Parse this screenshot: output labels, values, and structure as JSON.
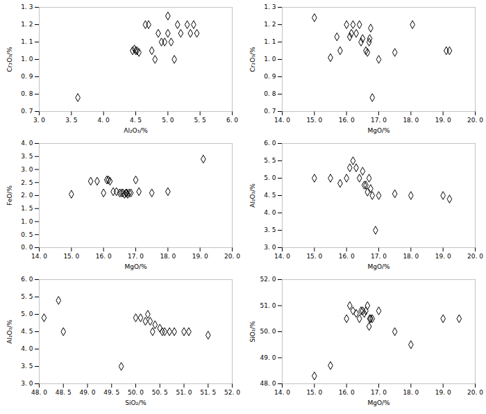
{
  "chart_data": [
    {
      "type": "scatter",
      "xlabel": "Al₂O₃/%",
      "ylabel": "Cr₂O₃/%",
      "color": "black",
      "marker": "diamond",
      "grid": false,
      "xlim": [
        3.0,
        6.0
      ],
      "ylim": [
        0.7,
        1.3
      ],
      "xticks": [
        {
          "value": 3.0,
          "label": "3. 0"
        },
        {
          "value": 3.5,
          "label": "3. 5"
        },
        {
          "value": 4.0,
          "label": "4. 0"
        },
        {
          "value": 4.5,
          "label": "4. 5"
        },
        {
          "value": 5.0,
          "label": "5. 0"
        },
        {
          "value": 5.5,
          "label": "5. 5"
        },
        {
          "value": 6.0,
          "label": "6. 0"
        }
      ],
      "yticks": [
        {
          "value": 0.7,
          "label": "0. 7"
        },
        {
          "value": 0.8,
          "label": "0. 8"
        },
        {
          "value": 0.9,
          "label": "0. 9"
        },
        {
          "value": 1.0,
          "label": "1. 0"
        },
        {
          "value": 1.1,
          "label": "1. 1"
        },
        {
          "value": 1.2,
          "label": "1. 2"
        },
        {
          "value": 1.3,
          "label": "1. 3"
        }
      ],
      "x": [
        3.6,
        4.45,
        4.48,
        4.5,
        4.52,
        4.55,
        4.65,
        4.7,
        4.75,
        4.8,
        4.85,
        4.9,
        4.95,
        5.0,
        5.0,
        5.05,
        5.1,
        5.15,
        5.2,
        5.3,
        5.35,
        5.4,
        5.45
      ],
      "y": [
        0.78,
        1.05,
        1.06,
        1.05,
        1.05,
        1.04,
        1.2,
        1.2,
        1.05,
        1.0,
        1.15,
        1.1,
        1.1,
        1.25,
        1.15,
        1.1,
        1.0,
        1.2,
        1.15,
        1.2,
        1.15,
        1.2,
        1.15
      ]
    },
    {
      "type": "scatter",
      "xlabel": "MgO/%",
      "ylabel": "Cr₂O₃/%",
      "color": "black",
      "marker": "diamond",
      "grid": false,
      "xlim": [
        14.0,
        20.0
      ],
      "ylim": [
        0.7,
        1.3
      ],
      "xticks": [
        {
          "value": 14.0,
          "label": "14. 0"
        },
        {
          "value": 15.0,
          "label": "15. 0"
        },
        {
          "value": 16.0,
          "label": "16. 0"
        },
        {
          "value": 17.0,
          "label": "17. 0"
        },
        {
          "value": 18.0,
          "label": "18. 0"
        },
        {
          "value": 19.0,
          "label": "19. 0"
        },
        {
          "value": 20.0,
          "label": "20. 0"
        }
      ],
      "yticks": [
        {
          "value": 0.7,
          "label": "0. 7"
        },
        {
          "value": 0.8,
          "label": "0. 8"
        },
        {
          "value": 0.9,
          "label": "0. 9"
        },
        {
          "value": 1.0,
          "label": "1. 0"
        },
        {
          "value": 1.1,
          "label": "1. 1"
        },
        {
          "value": 1.2,
          "label": "1. 2"
        },
        {
          "value": 1.3,
          "label": "1. 3"
        }
      ],
      "x": [
        15.0,
        15.5,
        15.7,
        15.8,
        16.0,
        16.1,
        16.15,
        16.2,
        16.3,
        16.4,
        16.45,
        16.5,
        16.6,
        16.65,
        16.7,
        16.72,
        16.75,
        16.8,
        17.0,
        17.5,
        18.05,
        19.1,
        19.2
      ],
      "y": [
        1.24,
        1.01,
        1.13,
        1.05,
        1.2,
        1.13,
        1.15,
        1.2,
        1.15,
        1.2,
        1.1,
        1.12,
        1.05,
        1.04,
        1.1,
        1.12,
        1.18,
        0.78,
        1.0,
        1.04,
        1.2,
        1.05,
        1.05
      ]
    },
    {
      "type": "scatter",
      "xlabel": "MgO/%",
      "ylabel": "FeO/%",
      "color": "black",
      "marker": "diamond",
      "grid": false,
      "xlim": [
        14.0,
        20.0
      ],
      "ylim": [
        0.0,
        4.0
      ],
      "xticks": [
        {
          "value": 14.0,
          "label": "14. 0"
        },
        {
          "value": 15.0,
          "label": "15. 0"
        },
        {
          "value": 16.0,
          "label": "16. 0"
        },
        {
          "value": 17.0,
          "label": "17. 0"
        },
        {
          "value": 18.0,
          "label": "18. 0"
        },
        {
          "value": 19.0,
          "label": "19. 0"
        },
        {
          "value": 20.0,
          "label": "20. 0"
        }
      ],
      "yticks": [
        {
          "value": 0.0,
          "label": "0. 0"
        },
        {
          "value": 0.5,
          "label": "0. 5"
        },
        {
          "value": 1.0,
          "label": "1. 0"
        },
        {
          "value": 1.5,
          "label": "1. 5"
        },
        {
          "value": 2.0,
          "label": "2. 0"
        },
        {
          "value": 2.5,
          "label": "2. 5"
        },
        {
          "value": 3.0,
          "label": "3. 0"
        },
        {
          "value": 3.5,
          "label": "3. 5"
        },
        {
          "value": 4.0,
          "label": "4. 0"
        }
      ],
      "x": [
        15.0,
        15.6,
        15.8,
        16.0,
        16.1,
        16.15,
        16.2,
        16.3,
        16.4,
        16.5,
        16.55,
        16.6,
        16.65,
        16.7,
        16.72,
        16.75,
        16.8,
        16.85,
        17.0,
        17.1,
        17.5,
        18.0,
        19.1
      ],
      "y": [
        2.05,
        2.55,
        2.55,
        2.1,
        2.6,
        2.6,
        2.55,
        2.15,
        2.15,
        2.1,
        2.1,
        2.1,
        2.05,
        2.1,
        2.1,
        2.05,
        2.1,
        2.1,
        2.6,
        2.15,
        2.1,
        2.15,
        3.4
      ]
    },
    {
      "type": "scatter",
      "xlabel": "MgO/%",
      "ylabel": "Al₂O₃/%",
      "color": "black",
      "marker": "diamond",
      "grid": false,
      "xlim": [
        14.0,
        20.0
      ],
      "ylim": [
        3.0,
        6.0
      ],
      "xticks": [
        {
          "value": 14.0,
          "label": "14. 0"
        },
        {
          "value": 15.0,
          "label": "15. 0"
        },
        {
          "value": 16.0,
          "label": "16. 0"
        },
        {
          "value": 17.0,
          "label": "17. 0"
        },
        {
          "value": 18.0,
          "label": "18. 0"
        },
        {
          "value": 19.0,
          "label": "19. 0"
        },
        {
          "value": 20.0,
          "label": "20. 0"
        }
      ],
      "yticks": [
        {
          "value": 3.0,
          "label": "3. 0"
        },
        {
          "value": 3.5,
          "label": "3. 5"
        },
        {
          "value": 4.0,
          "label": "4. 0"
        },
        {
          "value": 4.5,
          "label": "4. 5"
        },
        {
          "value": 5.0,
          "label": "5. 0"
        },
        {
          "value": 5.5,
          "label": "5. 5"
        },
        {
          "value": 6.0,
          "label": "6. 0"
        }
      ],
      "x": [
        15.0,
        15.5,
        15.8,
        16.0,
        16.1,
        16.2,
        16.3,
        16.4,
        16.5,
        16.55,
        16.6,
        16.65,
        16.7,
        16.75,
        16.8,
        16.9,
        17.0,
        17.5,
        18.0,
        19.0,
        19.2
      ],
      "y": [
        5.0,
        5.0,
        4.85,
        5.0,
        5.3,
        5.5,
        5.3,
        5.0,
        5.2,
        4.8,
        4.8,
        4.6,
        5.0,
        4.7,
        4.5,
        3.5,
        4.5,
        4.55,
        4.5,
        4.5,
        4.4
      ]
    },
    {
      "type": "scatter",
      "xlabel": "SiO₂/%",
      "ylabel": "Al₂O₃/%",
      "color": "black",
      "marker": "diamond",
      "grid": false,
      "xlim": [
        48.0,
        52.0
      ],
      "ylim": [
        3.0,
        6.0
      ],
      "xticks": [
        {
          "value": 48.0,
          "label": "48. 0"
        },
        {
          "value": 48.5,
          "label": "48. 5"
        },
        {
          "value": 49.0,
          "label": "49. 0"
        },
        {
          "value": 49.5,
          "label": "49. 5"
        },
        {
          "value": 50.0,
          "label": "50. 0"
        },
        {
          "value": 50.5,
          "label": "50. 5"
        },
        {
          "value": 51.0,
          "label": "51. 0"
        },
        {
          "value": 51.5,
          "label": "51. 5"
        },
        {
          "value": 52.0,
          "label": "52. 0"
        }
      ],
      "yticks": [
        {
          "value": 3.0,
          "label": "3. 0"
        },
        {
          "value": 3.5,
          "label": "3. 5"
        },
        {
          "value": 4.0,
          "label": "4. 0"
        },
        {
          "value": 4.5,
          "label": "4. 5"
        },
        {
          "value": 5.0,
          "label": "5. 0"
        },
        {
          "value": 5.5,
          "label": "5. 5"
        },
        {
          "value": 6.0,
          "label": "6. 0"
        }
      ],
      "x": [
        48.1,
        48.4,
        48.5,
        49.7,
        50.0,
        50.1,
        50.2,
        50.25,
        50.3,
        50.35,
        50.4,
        50.5,
        50.55,
        50.6,
        50.7,
        50.8,
        51.0,
        51.1,
        51.5
      ],
      "y": [
        4.9,
        5.4,
        4.5,
        3.5,
        4.9,
        4.9,
        4.8,
        5.0,
        4.8,
        4.5,
        4.7,
        4.6,
        4.5,
        4.5,
        4.5,
        4.5,
        4.5,
        4.5,
        4.4
      ]
    },
    {
      "type": "scatter",
      "xlabel": "MgO/%",
      "ylabel": "SiO₂/%",
      "color": "black",
      "marker": "diamond",
      "grid": false,
      "xlim": [
        14.0,
        20.0
      ],
      "ylim": [
        48.0,
        52.0
      ],
      "xticks": [
        {
          "value": 14.0,
          "label": "14. 0"
        },
        {
          "value": 15.0,
          "label": "15. 0"
        },
        {
          "value": 16.0,
          "label": "16. 0"
        },
        {
          "value": 17.0,
          "label": "17. 0"
        },
        {
          "value": 18.0,
          "label": "18. 0"
        },
        {
          "value": 19.0,
          "label": "19. 0"
        },
        {
          "value": 20.0,
          "label": "20. 0"
        }
      ],
      "yticks": [
        {
          "value": 48.0,
          "label": "48. 0"
        },
        {
          "value": 49.0,
          "label": "49. 0"
        },
        {
          "value": 50.0,
          "label": "50. 0"
        },
        {
          "value": 51.0,
          "label": "51. 0"
        },
        {
          "value": 52.0,
          "label": "52. 0"
        }
      ],
      "x": [
        15.0,
        15.5,
        16.0,
        16.1,
        16.2,
        16.3,
        16.4,
        16.45,
        16.5,
        16.55,
        16.6,
        16.65,
        16.7,
        16.72,
        16.75,
        16.8,
        17.0,
        17.5,
        18.0,
        19.0,
        19.5
      ],
      "y": [
        48.3,
        48.7,
        50.5,
        51.0,
        50.8,
        50.7,
        50.5,
        50.8,
        50.8,
        50.7,
        50.8,
        51.0,
        50.2,
        50.5,
        50.5,
        50.5,
        50.8,
        50.0,
        49.5,
        50.5,
        50.5
      ]
    }
  ]
}
